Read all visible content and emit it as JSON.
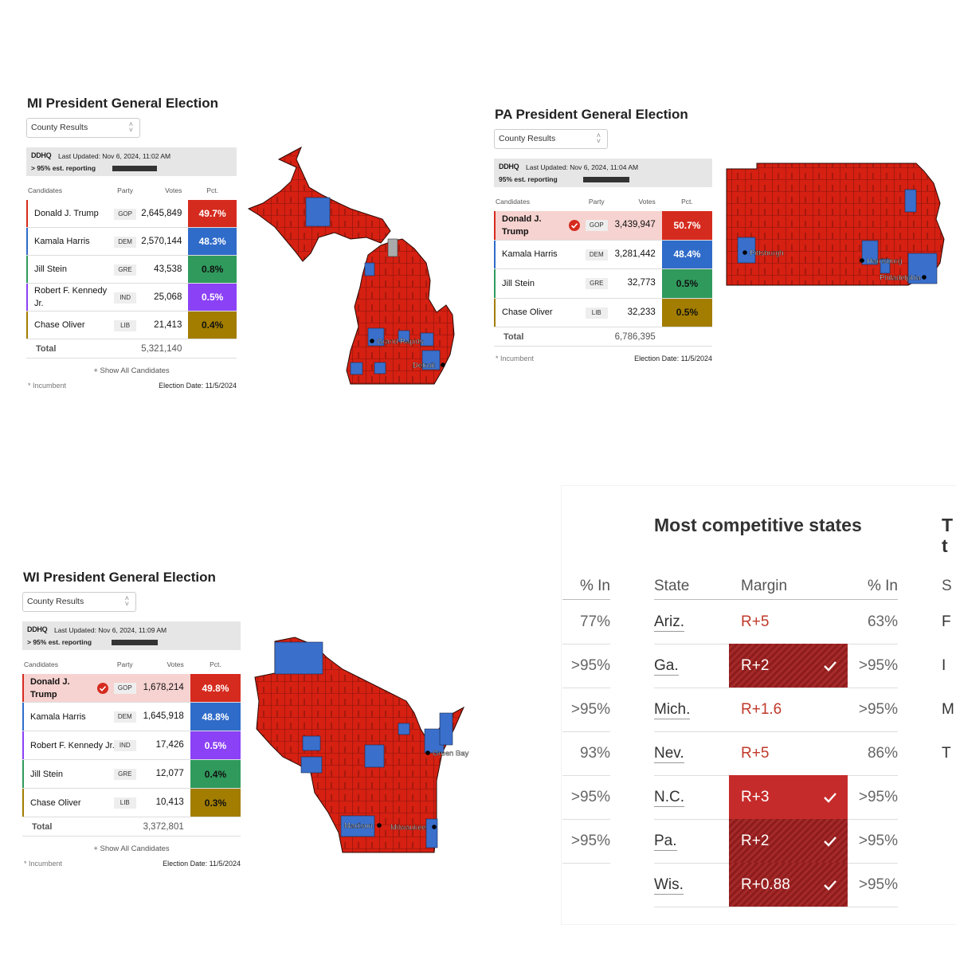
{
  "panels": [
    {
      "title": "MI President General Election",
      "dropdown": "County Results",
      "source": "DDHQ",
      "updated": "Last Updated: Nov 6, 2024, 11:02 AM",
      "reporting": "> 95% est. reporting",
      "headers": [
        "Candidates",
        "Party",
        "Votes",
        "Pct."
      ],
      "rows": [
        {
          "name": "Donald J. Trump",
          "party": "GOP",
          "votes": "2,645,849",
          "pct": "49.7%",
          "winner": false
        },
        {
          "name": "Kamala Harris",
          "party": "DEM",
          "votes": "2,570,144",
          "pct": "48.3%",
          "winner": false
        },
        {
          "name": "Jill Stein",
          "party": "GRE",
          "votes": "43,538",
          "pct": "0.8%",
          "winner": false
        },
        {
          "name": "Robert F. Kennedy Jr.",
          "party": "IND",
          "votes": "25,068",
          "pct": "0.5%",
          "winner": false
        },
        {
          "name": "Chase Oliver",
          "party": "LIB",
          "votes": "21,413",
          "pct": "0.4%",
          "winner": false
        }
      ],
      "total_label": "Total",
      "total": "5,321,140",
      "show_all": "+ Show All Candidates",
      "incumbent": "* Incumbent",
      "election_date": "Election Date: 11/5/2024",
      "cities": [
        "Grand Rapids",
        "Detroit"
      ]
    },
    {
      "title": "PA President General Election",
      "dropdown": "County Results",
      "source": "DDHQ",
      "updated": "Last Updated: Nov 6, 2024, 11:04 AM",
      "reporting": "95% est. reporting",
      "headers": [
        "Candidates",
        "Party",
        "Votes",
        "Pct."
      ],
      "rows": [
        {
          "name": "Donald J. Trump",
          "party": "GOP",
          "votes": "3,439,947",
          "pct": "50.7%",
          "winner": true
        },
        {
          "name": "Kamala Harris",
          "party": "DEM",
          "votes": "3,281,442",
          "pct": "48.4%",
          "winner": false
        },
        {
          "name": "Jill Stein",
          "party": "GRE",
          "votes": "32,773",
          "pct": "0.5%",
          "winner": false
        },
        {
          "name": "Chase Oliver",
          "party": "LIB",
          "votes": "32,233",
          "pct": "0.5%",
          "winner": false
        }
      ],
      "total_label": "Total",
      "total": "6,786,395",
      "incumbent": "* Incumbent",
      "election_date": "Election Date: 11/5/2024",
      "cities": [
        "Pittsburgh",
        "Harrisburg",
        "Philadelphia"
      ]
    },
    {
      "title": "WI President General Election",
      "dropdown": "County Results",
      "source": "DDHQ",
      "updated": "Last Updated: Nov 6, 2024, 11:09 AM",
      "reporting": "> 95% est. reporting",
      "headers": [
        "Candidates",
        "Party",
        "Votes",
        "Pct."
      ],
      "rows": [
        {
          "name": "Donald J. Trump",
          "party": "GOP",
          "votes": "1,678,214",
          "pct": "49.8%",
          "winner": true
        },
        {
          "name": "Kamala Harris",
          "party": "DEM",
          "votes": "1,645,918",
          "pct": "48.8%",
          "winner": false
        },
        {
          "name": "Robert F. Kennedy Jr.",
          "party": "IND",
          "votes": "17,426",
          "pct": "0.5%",
          "winner": false
        },
        {
          "name": "Jill Stein",
          "party": "GRE",
          "votes": "12,077",
          "pct": "0.4%",
          "winner": false
        },
        {
          "name": "Chase Oliver",
          "party": "LIB",
          "votes": "10,413",
          "pct": "0.3%",
          "winner": false
        }
      ],
      "total_label": "Total",
      "total": "3,372,801",
      "show_all": "+ Show All Candidates",
      "incumbent": "* Incumbent",
      "election_date": "Election Date: 11/5/2024",
      "cities": [
        "Green Bay",
        "Madison",
        "Milwaukee"
      ]
    }
  ],
  "competitive": {
    "title": "Most competitive states",
    "left_header": "% In",
    "left_values": [
      "77%",
      ">95%",
      ">95%",
      "93%",
      ">95%",
      ">95%"
    ],
    "headers": [
      "State",
      "Margin",
      "% In"
    ],
    "rows": [
      {
        "state": "Ariz.",
        "margin": "R+5",
        "pct_in": "63%",
        "called": false,
        "fill": "none"
      },
      {
        "state": "Ga.",
        "margin": "R+2",
        "pct_in": ">95%",
        "called": true,
        "fill": "hatched"
      },
      {
        "state": "Mich.",
        "margin": "R+1.6",
        "pct_in": ">95%",
        "called": false,
        "fill": "none"
      },
      {
        "state": "Nev.",
        "margin": "R+5",
        "pct_in": "86%",
        "called": false,
        "fill": "none"
      },
      {
        "state": "N.C.",
        "margin": "R+3",
        "pct_in": ">95%",
        "called": true,
        "fill": "solid"
      },
      {
        "state": "Pa.",
        "margin": "R+2",
        "pct_in": ">95%",
        "called": true,
        "fill": "hatched"
      },
      {
        "state": "Wis.",
        "margin": "R+0.88",
        "pct_in": ">95%",
        "called": true,
        "fill": "hatched"
      }
    ],
    "cut_title": [
      "T",
      "t"
    ],
    "cut_header": "S",
    "cut_values": [
      "F",
      "I",
      "M",
      "T"
    ]
  }
}
